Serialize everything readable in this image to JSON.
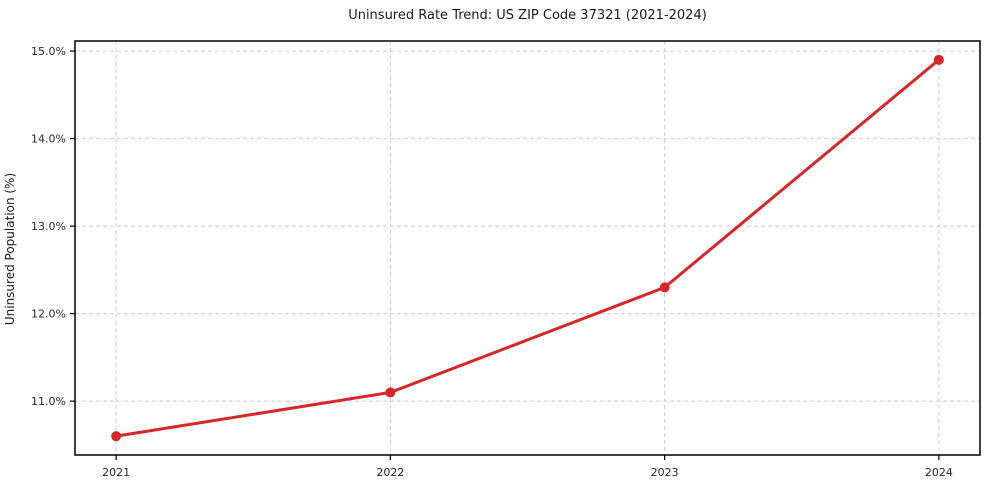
{
  "chart_data": {
    "type": "line",
    "title": "Uninsured Rate Trend: US ZIP Code 37321 (2021-2024)",
    "xlabel": "",
    "ylabel": "Uninsured Population (%)",
    "x": [
      2021,
      2022,
      2023,
      2024
    ],
    "x_tick_labels": [
      "2021",
      "2022",
      "2023",
      "2024"
    ],
    "series": [
      {
        "values": [
          10.6,
          11.1,
          12.3,
          14.9
        ],
        "color": "#d62728"
      }
    ],
    "y_ticks": [
      11.0,
      12.0,
      13.0,
      14.0,
      15.0
    ],
    "y_tick_labels": [
      "11.0%",
      "12.0%",
      "13.0%",
      "14.0%",
      "15.0%"
    ],
    "xlim": [
      2020.85,
      2024.15
    ],
    "ylim": [
      10.385,
      15.115
    ],
    "grid": true,
    "grid_style": "dashed",
    "grid_color": "#cccccc",
    "spine_color": "#000000",
    "background": "#ffffff",
    "legend_position": "none"
  }
}
